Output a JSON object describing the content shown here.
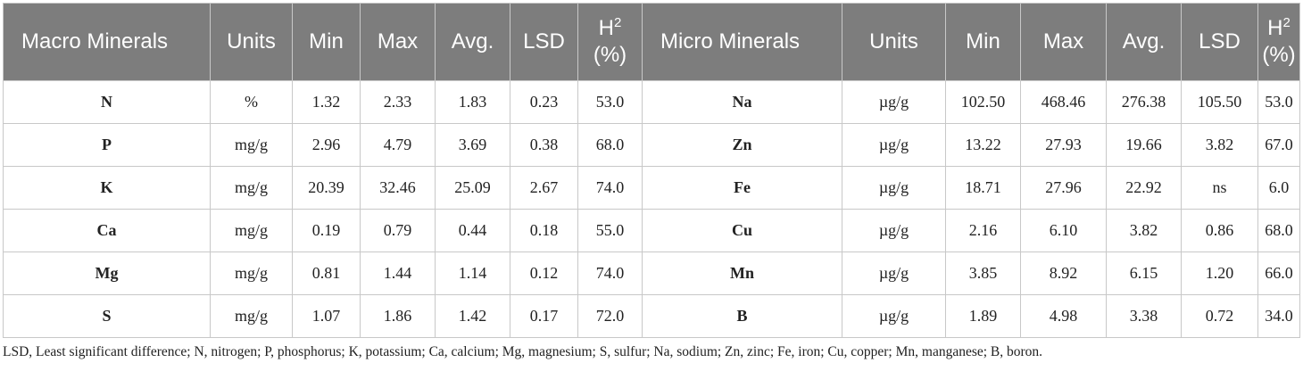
{
  "header": {
    "macro_minerals": "Macro Minerals",
    "units": "Units",
    "min": "Min",
    "max": "Max",
    "avg": "Avg.",
    "lsd": "LSD",
    "h2_base": "H",
    "h2_sup": "2",
    "h2_pct": "(%)",
    "micro_minerals": "Micro Minerals"
  },
  "rows": [
    {
      "macro": "N",
      "macro_units": "%",
      "macro_min": "1.32",
      "macro_max": "2.33",
      "macro_avg": "1.83",
      "macro_lsd": "0.23",
      "macro_h2": "53.0",
      "micro": "Na",
      "micro_units": "µg/g",
      "micro_min": "102.50",
      "micro_max": "468.46",
      "micro_avg": "276.38",
      "micro_lsd": "105.50",
      "micro_h2": "53.0"
    },
    {
      "macro": "P",
      "macro_units": "mg/g",
      "macro_min": "2.96",
      "macro_max": "4.79",
      "macro_avg": "3.69",
      "macro_lsd": "0.38",
      "macro_h2": "68.0",
      "micro": "Zn",
      "micro_units": "µg/g",
      "micro_min": "13.22",
      "micro_max": "27.93",
      "micro_avg": "19.66",
      "micro_lsd": "3.82",
      "micro_h2": "67.0"
    },
    {
      "macro": "K",
      "macro_units": "mg/g",
      "macro_min": "20.39",
      "macro_max": "32.46",
      "macro_avg": "25.09",
      "macro_lsd": "2.67",
      "macro_h2": "74.0",
      "micro": "Fe",
      "micro_units": "µg/g",
      "micro_min": "18.71",
      "micro_max": "27.96",
      "micro_avg": "22.92",
      "micro_lsd": "ns",
      "micro_h2": "6.0"
    },
    {
      "macro": "Ca",
      "macro_units": "mg/g",
      "macro_min": "0.19",
      "macro_max": "0.79",
      "macro_avg": "0.44",
      "macro_lsd": "0.18",
      "macro_h2": "55.0",
      "micro": "Cu",
      "micro_units": "µg/g",
      "micro_min": "2.16",
      "micro_max": "6.10",
      "micro_avg": "3.82",
      "micro_lsd": "0.86",
      "micro_h2": "68.0"
    },
    {
      "macro": "Mg",
      "macro_units": "mg/g",
      "macro_min": "0.81",
      "macro_max": "1.44",
      "macro_avg": "1.14",
      "macro_lsd": "0.12",
      "macro_h2": "74.0",
      "micro": "Mn",
      "micro_units": "µg/g",
      "micro_min": "3.85",
      "micro_max": "8.92",
      "micro_avg": "6.15",
      "micro_lsd": "1.20",
      "micro_h2": "66.0"
    },
    {
      "macro": "S",
      "macro_units": "mg/g",
      "macro_min": "1.07",
      "macro_max": "1.86",
      "macro_avg": "1.42",
      "macro_lsd": "0.17",
      "macro_h2": "72.0",
      "micro": "B",
      "micro_units": "µg/g",
      "micro_min": "1.89",
      "micro_max": "4.98",
      "micro_avg": "3.38",
      "micro_lsd": "0.72",
      "micro_h2": "34.0"
    }
  ],
  "footnote": "LSD, Least significant difference; N, nitrogen; P, phosphorus; K, potassium; Ca, calcium; Mg, magnesium; S, sulfur; Na, sodium; Zn, zinc; Fe, iron; Cu, copper; Mn, manganese; B, boron.",
  "colors": {
    "header_bg": "#7d7d7d",
    "header_text": "#ffffff",
    "grid": "#c8c8c8"
  }
}
